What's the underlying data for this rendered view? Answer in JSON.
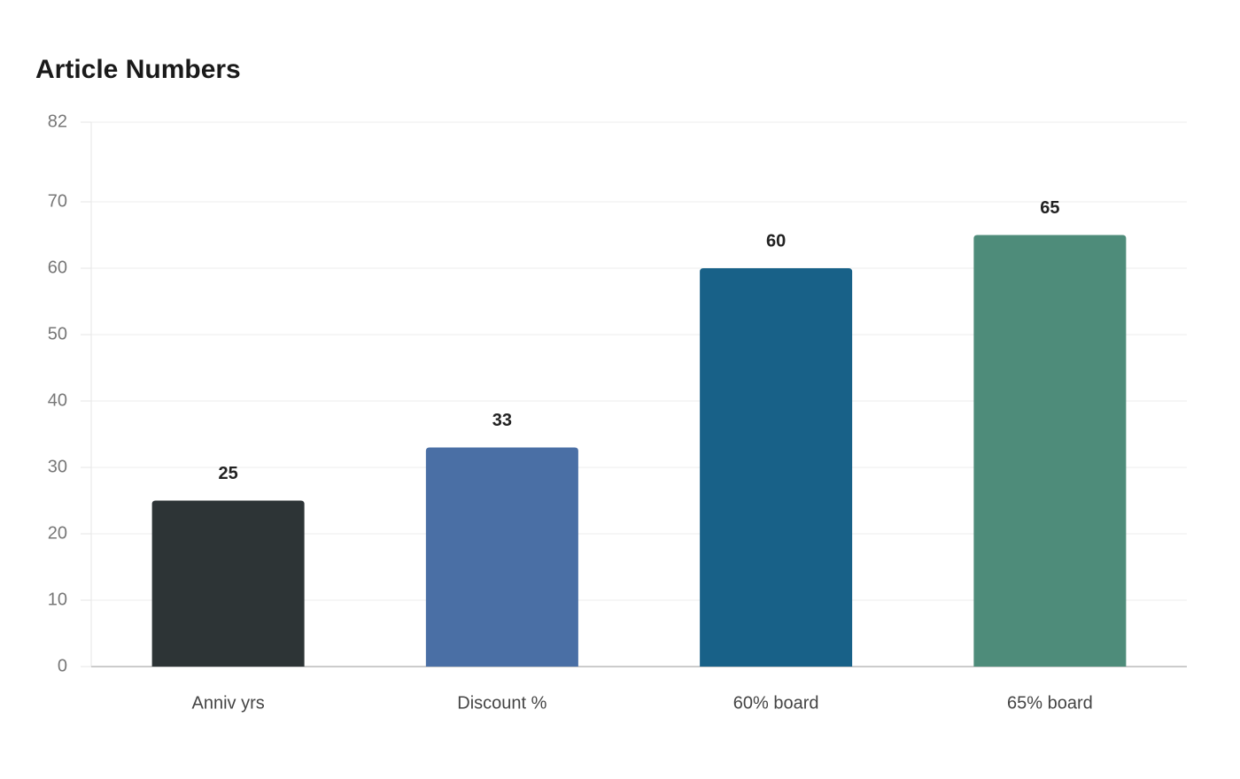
{
  "chart_data": {
    "type": "bar",
    "title": "Article Numbers",
    "categories": [
      "Anniv yrs",
      "Discount %",
      "60% board",
      "65% board"
    ],
    "values": [
      25,
      33,
      60,
      65
    ],
    "colors": [
      "#2d3436",
      "#4a6fa5",
      "#186188",
      "#4e8c7a"
    ],
    "ylim": [
      0,
      82
    ],
    "yticks": [
      0,
      10,
      20,
      30,
      40,
      50,
      60,
      70,
      82
    ],
    "grid": true
  }
}
